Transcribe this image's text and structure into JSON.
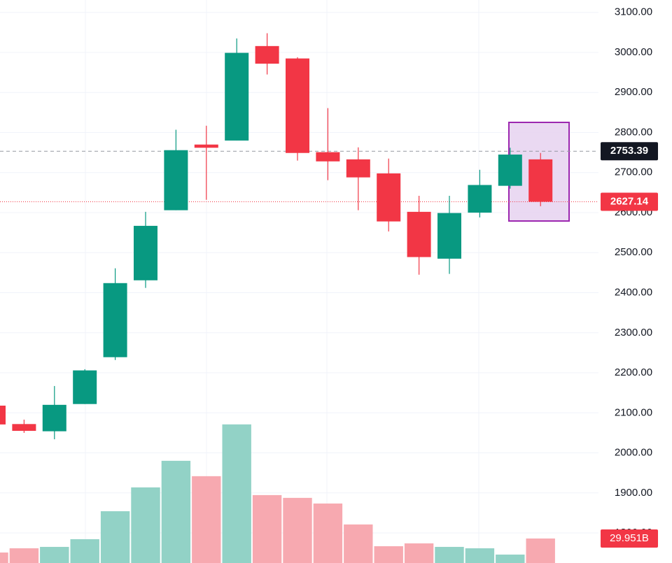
{
  "chart_data": {
    "type": "candlestick",
    "categories": [
      null,
      null,
      null,
      null,
      null,
      null,
      null,
      null,
      null,
      null,
      null,
      null,
      null,
      null,
      null,
      null,
      null,
      null,
      null
    ],
    "open": [
      2118,
      2072,
      2054,
      2122,
      2239,
      2431,
      2606,
      2770,
      2780,
      3016,
      2985,
      2751,
      2733,
      2698,
      2602,
      2485,
      2600,
      2667,
      2733
    ],
    "high": [
      2120,
      2083,
      2167,
      2209,
      2461,
      2602,
      2807,
      2817,
      3035,
      3048,
      2988,
      2861,
      2763,
      2735,
      2642,
      2642,
      2707,
      2762,
      2749
    ],
    "low": [
      2068,
      2050,
      2034,
      2122,
      2232,
      2412,
      2606,
      2632,
      2780,
      2945,
      2730,
      2681,
      2606,
      2553,
      2445,
      2447,
      2588,
      2660,
      2616
    ],
    "close": [
      2071,
      2055,
      2120,
      2206,
      2424,
      2567,
      2756,
      2762,
      2999,
      2972,
      2749,
      2728,
      2688,
      2578,
      2489,
      2599,
      2669,
      2745,
      2627.14
    ],
    "up_color": "#089981",
    "down_color": "#f23645",
    "ylim": [
      1725,
      3131
    ],
    "yticks": [
      {
        "value": 1800,
        "label": "1800.00"
      },
      {
        "value": 1900,
        "label": "1900.00"
      },
      {
        "value": 2000,
        "label": "2000.00"
      },
      {
        "value": 2100,
        "label": "2100.00"
      },
      {
        "value": 2200,
        "label": "2200.00"
      },
      {
        "value": 2300,
        "label": "2300.00"
      },
      {
        "value": 2400,
        "label": "2400.00"
      },
      {
        "value": 2500,
        "label": "2500.00"
      },
      {
        "value": 2600,
        "label": "2600.00"
      },
      {
        "value": 2700,
        "label": "2700.00"
      },
      {
        "value": 2800,
        "label": "2800.00"
      },
      {
        "value": 2900,
        "label": "2900.00"
      },
      {
        "value": 3000,
        "label": "3000.00"
      },
      {
        "value": 3100,
        "label": "3100.00"
      }
    ],
    "grid": true,
    "crosshair_price": 2753.39,
    "last_price": 2627.14,
    "volume": {
      "values": [
        12.8,
        18.0,
        19.7,
        29.1,
        63.3,
        92.4,
        124.9,
        106.1,
        169.4,
        83.0,
        79.6,
        72.7,
        47.1,
        20.5,
        24.0,
        19.7,
        18.0,
        10.3,
        29.951
      ],
      "value_labels": [
        null,
        null,
        null,
        null,
        null,
        null,
        null,
        null,
        null,
        null,
        null,
        null,
        null,
        null,
        null,
        null,
        null,
        null,
        "29.951B"
      ],
      "ylim": [
        0,
        200
      ],
      "up_color": "#92d2c6",
      "down_color": "#f7a9b0"
    }
  }
}
